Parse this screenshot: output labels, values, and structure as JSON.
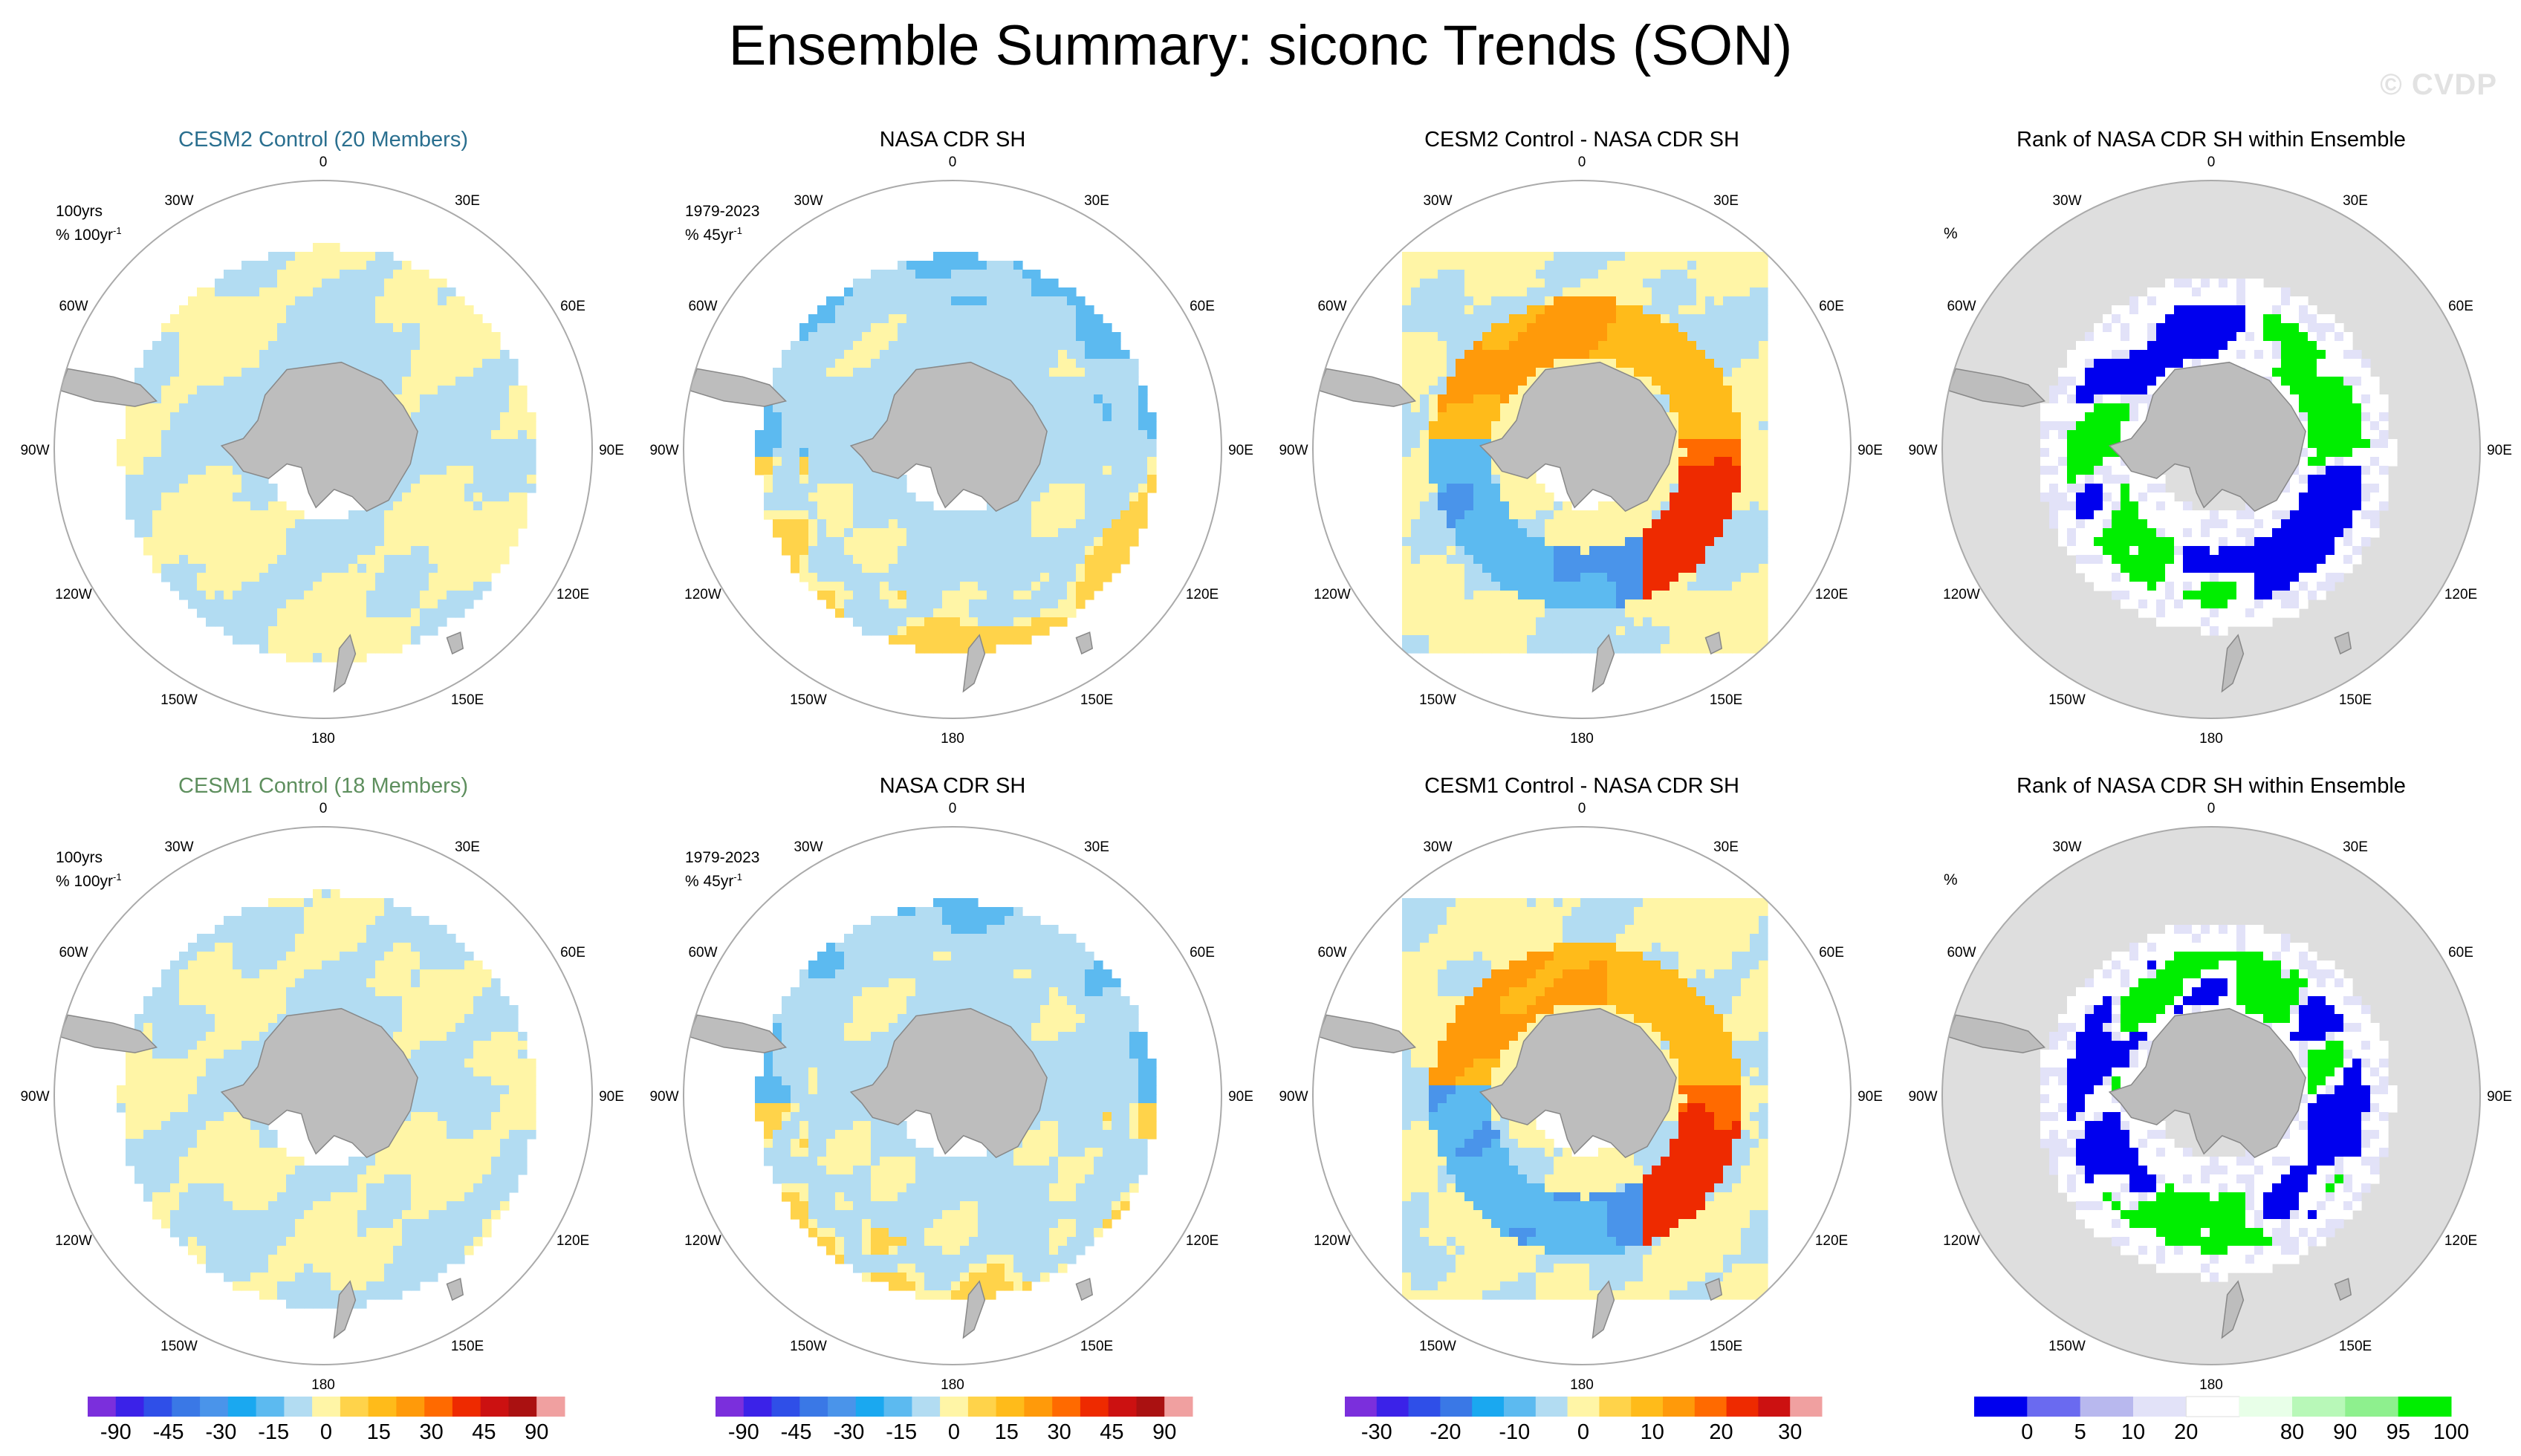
{
  "title": "Ensemble Summary: siconc Trends (SON)",
  "watermark": "© CVDP",
  "colors": {
    "model_title_cesm2": "#2a6f8f",
    "model_title_cesm1": "#5e8f5e",
    "land": "#bdbdbd",
    "circle": "#aaaaaa",
    "diff_palette": [
      "#7b2fdc",
      "#3b22e8",
      "#2f4fe8",
      "#3a78e6",
      "#4a94ea",
      "#1aa8f0",
      "#5cbaf0",
      "#b2dcf2",
      "#fff5a6",
      "#ffd34a",
      "#ffbb1a",
      "#ff9a0a",
      "#ff6a00",
      "#ee2a00",
      "#cc1111",
      "#aa1111",
      "#f0a0a0"
    ],
    "rank_palette": [
      "#0000ee",
      "#6a6af0",
      "#b8b8ee",
      "#e2e2f8",
      "#ffffff",
      "#e8ffe8",
      "#b8f8b8",
      "#8ef08e",
      "#00ee00"
    ]
  },
  "lon_labels": [
    "0",
    "30E",
    "60E",
    "90E",
    "120E",
    "150E",
    "180",
    "150W",
    "120W",
    "90W",
    "60W",
    "30W"
  ],
  "rows": [
    {
      "panels": [
        {
          "title": "CESM2 Control (20 Members)",
          "kind": "model",
          "ann1": "100yrs",
          "ann2": "% 100yr",
          "ann_sup": "-1"
        },
        {
          "title": "NASA CDR SH",
          "kind": "obs",
          "ann1": "1979-2023",
          "ann2": "% 45yr",
          "ann_sup": "-1"
        },
        {
          "title": "CESM2 Control - NASA CDR SH",
          "kind": "diff"
        },
        {
          "title": "Rank of NASA CDR SH within Ensemble",
          "kind": "rank",
          "ann1": "%"
        }
      ]
    },
    {
      "panels": [
        {
          "title": "CESM1 Control (18 Members)",
          "kind": "model",
          "ann1": "100yrs",
          "ann2": "% 100yr",
          "ann_sup": "-1"
        },
        {
          "title": "NASA CDR SH",
          "kind": "obs",
          "ann1": "1979-2023",
          "ann2": "% 45yr",
          "ann_sup": "-1"
        },
        {
          "title": "CESM1 Control - NASA CDR SH",
          "kind": "diff"
        },
        {
          "title": "Rank of NASA CDR SH within Ensemble",
          "kind": "rank",
          "ann1": "%"
        }
      ]
    }
  ],
  "chart_data": [
    {
      "type": "heatmap",
      "projection": "south-polar-stereographic",
      "title": "Ensemble Summary: siconc Trends (SON)",
      "colorbars": [
        {
          "panel_column": 1,
          "ticks": [
            "-90",
            "-45",
            "-30",
            "-15",
            "0",
            "15",
            "30",
            "45",
            "90"
          ],
          "levels": [
            -90,
            -75,
            -60,
            -45,
            -40,
            -35,
            -30,
            -25,
            -20,
            -15,
            -10,
            -5,
            0,
            5,
            10,
            15,
            20,
            25,
            30,
            35,
            40,
            45,
            60,
            75,
            90
          ]
        },
        {
          "panel_column": 2,
          "ticks": [
            "-90",
            "-45",
            "-30",
            "-15",
            "0",
            "15",
            "30",
            "45",
            "90"
          ],
          "levels": [
            -90,
            -75,
            -60,
            -45,
            -40,
            -35,
            -30,
            -25,
            -20,
            -15,
            -10,
            -5,
            0,
            5,
            10,
            15,
            20,
            25,
            30,
            35,
            40,
            45,
            60,
            75,
            90
          ]
        },
        {
          "panel_column": 3,
          "ticks": [
            "-30",
            "-20",
            "-10",
            "0",
            "10",
            "20",
            "30"
          ],
          "levels": [
            -35,
            -30,
            -25,
            -20,
            -15,
            -10,
            -5,
            0,
            5,
            10,
            15,
            20,
            25,
            30,
            35
          ]
        },
        {
          "panel_column": 4,
          "ticks": [
            "0",
            "5",
            "10",
            "20",
            "80",
            "90",
            "95",
            "100"
          ],
          "levels": [
            0,
            5,
            10,
            20,
            80,
            90,
            95,
            100
          ]
        }
      ]
    }
  ]
}
